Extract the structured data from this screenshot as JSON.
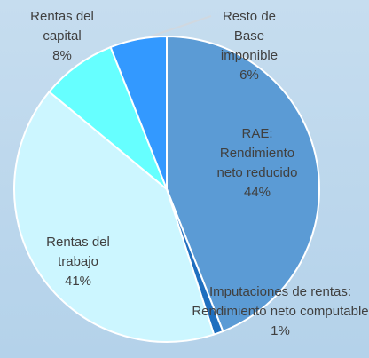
{
  "chart_data": {
    "type": "pie",
    "categories": [
      "RAE: Rendimiento neto reducido",
      "Imputaciones de rentas: Rendimiento neto computable",
      "Rentas del trabajo",
      "Rentas del capital",
      "Resto de Base imponible"
    ],
    "values": [
      44,
      1,
      41,
      8,
      6
    ],
    "value_labels": [
      "44%",
      "1%",
      "41%",
      "8%",
      "6%"
    ],
    "colors": [
      "#5b9bd5",
      "#1f6fbf",
      "#ccf6ff",
      "#66ffff",
      "#3399ff"
    ]
  }
}
